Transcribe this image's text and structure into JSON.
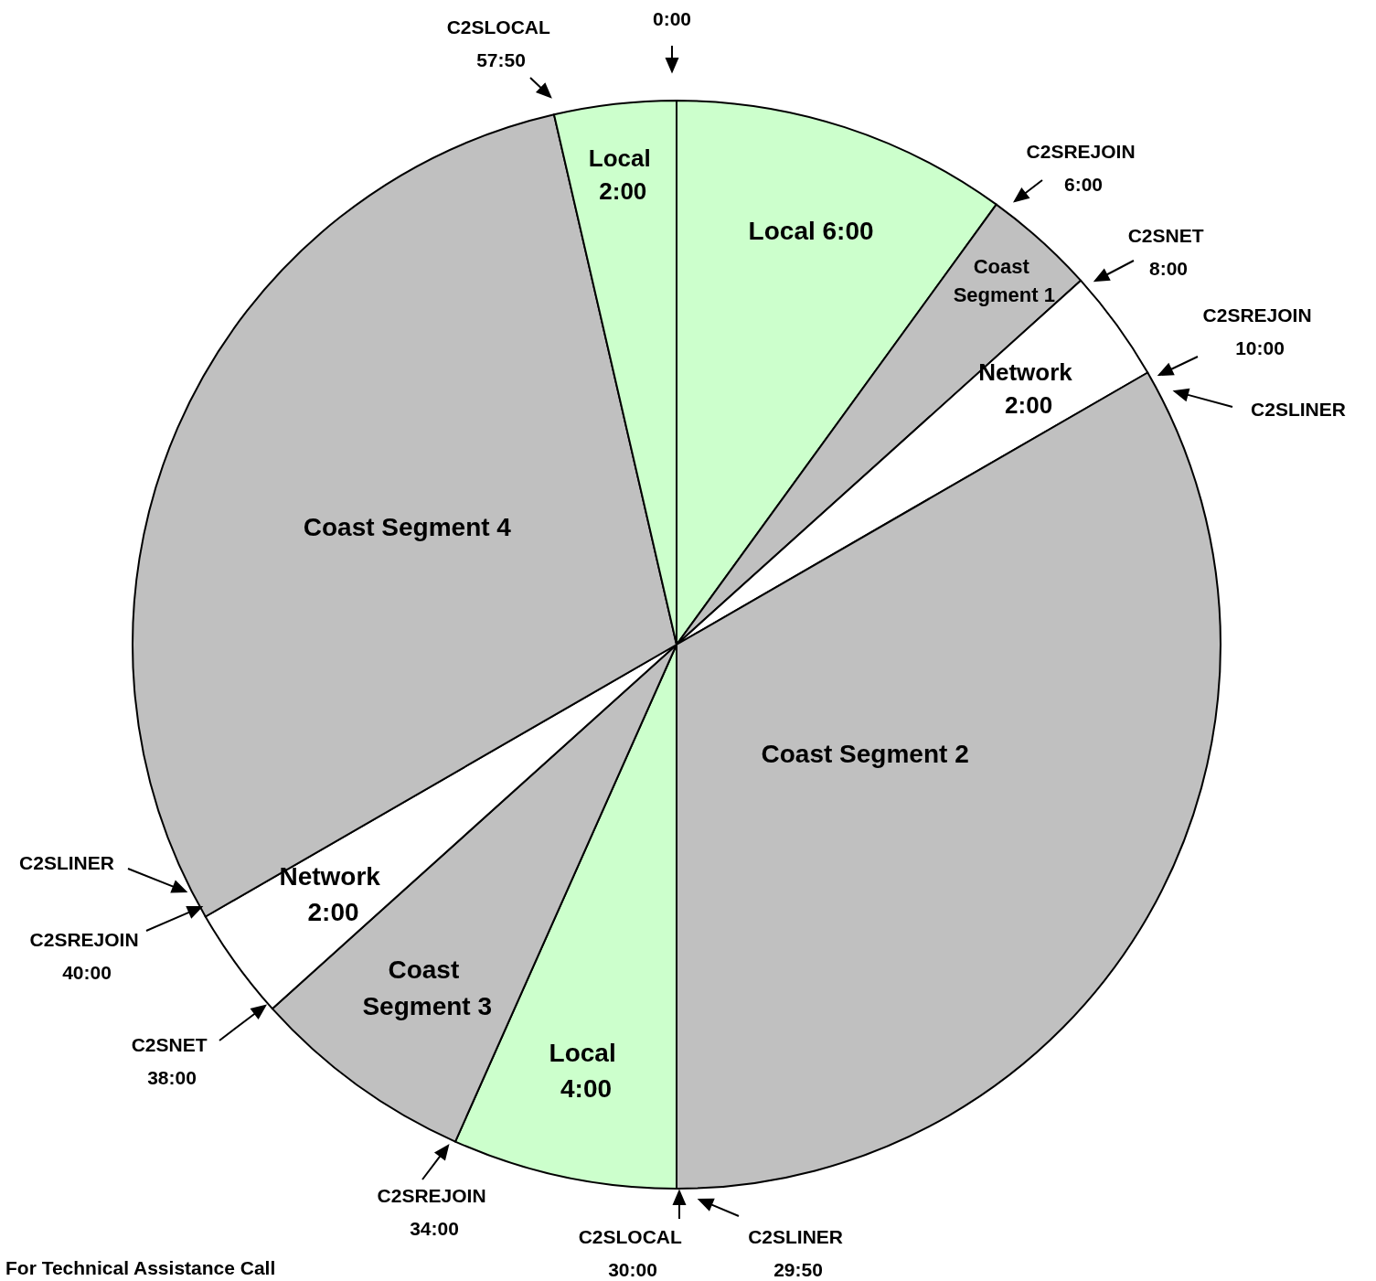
{
  "chart_data": {
    "type": "pie",
    "categories": [
      "Local 6:00",
      "Coast Segment 1",
      "Network 2:00",
      "Coast Segment 2",
      "Local 4:00",
      "Coast Segment 3",
      "Network 2:00",
      "Coast Segment 4",
      "Local 2:00"
    ],
    "values": [
      6,
      2,
      2,
      20,
      4,
      4,
      2,
      17.83,
      2.17
    ],
    "colors": [
      "#ccffcc",
      "#c0c0c0",
      "#ffffff",
      "#c0c0c0",
      "#ccffcc",
      "#c0c0c0",
      "#ffffff",
      "#c0c0c0",
      "#ccffcc"
    ],
    "annotations": [
      "0:00",
      "C2SLOCAL 57:50",
      "C2SREJOIN 6:00",
      "C2SNET 8:00",
      "C2SREJOIN 10:00",
      "C2SLINER",
      "C2SLINER",
      "C2SREJOIN 40:00",
      "C2SNET 38:00",
      "C2SREJOIN 34:00",
      "C2SLOCAL 30:00",
      "C2SLINER 29:50",
      "For Technical Assistance Call"
    ],
    "legend": false
  }
}
